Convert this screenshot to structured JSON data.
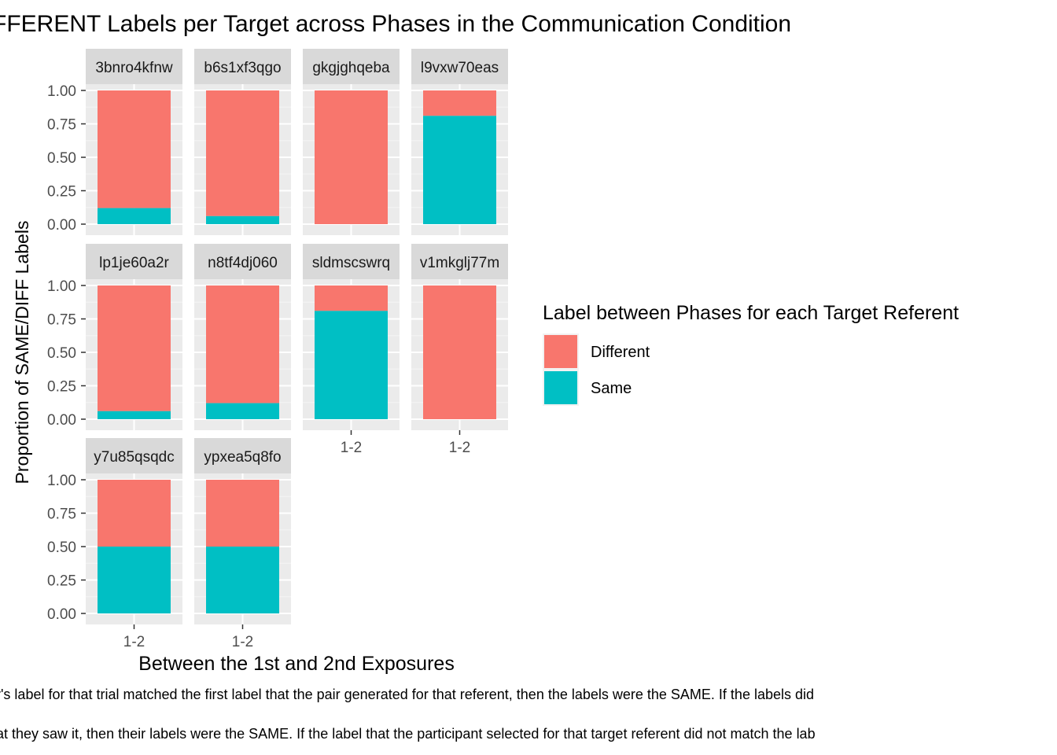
{
  "chart_data": {
    "type": "bar",
    "title": "FFERENT Labels per Target across Phases in the Communication Condition",
    "xlabel": "Between the 1st and 2nd Exposures",
    "ylabel": "Proportion of SAME/DIFF Labels",
    "ylim": [
      0,
      1
    ],
    "y_ticks": [
      "0.00",
      "0.25",
      "0.50",
      "0.75",
      "1.00"
    ],
    "x_category": "1-2",
    "legend": {
      "title": "Label between Phases for each Target Referent",
      "position": "right",
      "entries": [
        {
          "name": "Different",
          "color": "#F8766D"
        },
        {
          "name": "Same",
          "color": "#00BFC4"
        }
      ]
    },
    "panels": [
      {
        "label": "3bnro4kfnw",
        "same": 0.12,
        "different": 0.88
      },
      {
        "label": "b6s1xf3qgo",
        "same": 0.06,
        "different": 0.94
      },
      {
        "label": "gkgjghqeba",
        "same": 0.0,
        "different": 1.0
      },
      {
        "label": "l9vxw70eas",
        "same": 0.81,
        "different": 0.19
      },
      {
        "label": "lp1je60a2r",
        "same": 0.06,
        "different": 0.94
      },
      {
        "label": "n8tf4dj060",
        "same": 0.12,
        "different": 0.88
      },
      {
        "label": "sldmscswrq",
        "same": 0.81,
        "different": 0.19
      },
      {
        "label": "v1mkglj77m",
        "same": 0.0,
        "different": 1.0
      },
      {
        "label": "y7u85qsqdc",
        "same": 0.5,
        "different": 0.5
      },
      {
        "label": "ypxea5q8fo",
        "same": 0.5,
        "different": 0.5
      }
    ],
    "grid": true,
    "caption_lines": [
      "r's label for that trial matched the first label that the pair generated for that referent, then the labels were the SAME. If the labels did",
      "at they saw it, then their labels were the SAME. If the label that the participant selected for that target referent did not match the lab"
    ]
  }
}
